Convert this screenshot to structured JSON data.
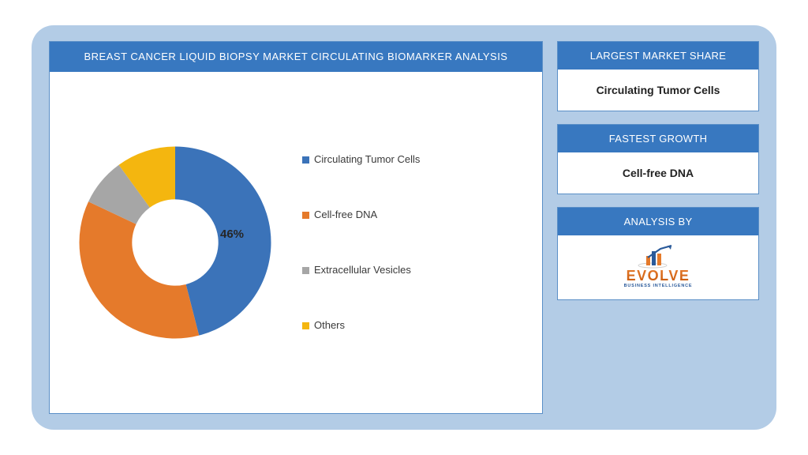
{
  "chart": {
    "type": "donut",
    "title": "BREAST CANCER LIQUID BIOPSY MARKET CIRCULATING BIOMARKER ANALYSIS",
    "inner_radius_ratio": 0.45,
    "background_color": "#ffffff",
    "panel_bg": "#b3cce6",
    "header_bg": "#3878c0",
    "header_fg": "#ffffff",
    "title_fontsize": 13,
    "slices": [
      {
        "label": "Circulating Tumor Cells",
        "value": 46,
        "color": "#3b73b9"
      },
      {
        "label": "Cell-free DNA",
        "value": 36,
        "color": "#e57a2b"
      },
      {
        "label": "Extracellular Vesicles",
        "value": 8,
        "color": "#a6a6a6"
      },
      {
        "label": "Others",
        "value": 10,
        "color": "#f4b60f"
      }
    ],
    "value_label": {
      "text": "46%",
      "fontsize": 15,
      "weight": 700,
      "anchor_slice": 0
    },
    "start_angle_deg": -90,
    "direction": "clockwise",
    "legend_fontsize": 13
  },
  "cards": {
    "largest_share": {
      "header": "LARGEST MARKET SHARE",
      "value": "Circulating Tumor Cells"
    },
    "fastest_growth": {
      "header": "FASTEST GROWTH",
      "value": "Cell-free DNA"
    },
    "analysis_by": {
      "header": "ANALYSIS BY",
      "brand": "EVOLVE",
      "brand_sub": "BUSINESS INTELLIGENCE",
      "brand_color_top": "#e57a2b",
      "brand_color_bottom": "#c95a0d",
      "arrow_color": "#2a5a9a",
      "bars": [
        "#e57a2b",
        "#2a5a9a",
        "#e57a2b"
      ]
    }
  }
}
